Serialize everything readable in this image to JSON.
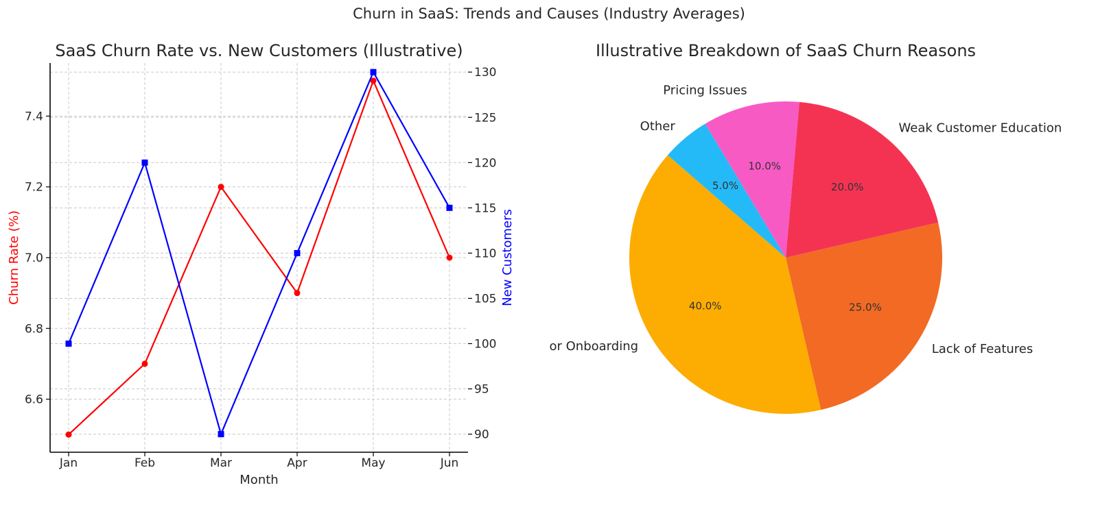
{
  "figure": {
    "suptitle": "Churn in SaaS: Trends and Causes (Industry Averages)"
  },
  "chart_data": [
    {
      "type": "line",
      "title": "SaaS Churn Rate vs. New Customers (Illustrative)",
      "xlabel": "Month",
      "categories": [
        "Jan",
        "Feb",
        "Mar",
        "Apr",
        "May",
        "Jun"
      ],
      "grid": true,
      "y_left": {
        "label": "Churn Rate (%)",
        "label_color": "#ff0000",
        "ylim": [
          6.45,
          7.55
        ],
        "ticks": [
          6.6,
          6.8,
          7.0,
          7.2,
          7.4
        ],
        "tick_labels": [
          "6.6",
          "6.8",
          "7.0",
          "7.2",
          "7.4"
        ]
      },
      "y_right": {
        "label": "New Customers",
        "label_color": "#0000ff",
        "ylim": [
          88,
          131
        ],
        "ticks": [
          90,
          95,
          100,
          105,
          110,
          115,
          120,
          125,
          130
        ],
        "tick_labels": [
          "90",
          "95",
          "100",
          "105",
          "110",
          "115",
          "120",
          "125",
          "130"
        ]
      },
      "series": [
        {
          "axis": "left",
          "color": "#ff0000",
          "marker": "circle",
          "values": [
            6.5,
            6.7,
            7.2,
            6.9,
            7.5,
            7.0
          ]
        },
        {
          "axis": "right",
          "color": "#0000ff",
          "marker": "square",
          "values": [
            100,
            120,
            90,
            110,
            130,
            115
          ]
        }
      ]
    },
    {
      "type": "pie",
      "title": "Illustrative Breakdown of SaaS Churn Reasons",
      "slices": [
        {
          "label": "Weak Customer Education",
          "value": 20,
          "pct_label": "20.0%",
          "color": "#f43353"
        },
        {
          "label": "Lack of Features",
          "value": 25,
          "pct_label": "25.0%",
          "color": "#f26a24"
        },
        {
          "label": "Poor Onboarding",
          "value": 40,
          "pct_label": "40.0%",
          "color": "#fdac01"
        },
        {
          "label": "Other",
          "value": 5,
          "pct_label": "5.0%",
          "color": "#24baf7"
        },
        {
          "label": "Pricing Issues",
          "value": 10,
          "pct_label": "10.0%",
          "color": "#f85ac4"
        }
      ]
    }
  ]
}
